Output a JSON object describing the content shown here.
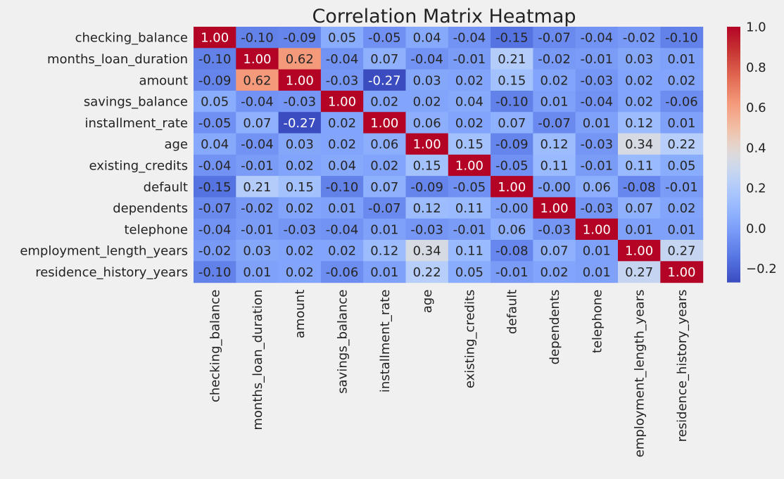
{
  "chart_data": {
    "type": "heatmap",
    "title": "Correlation Matrix Heatmap",
    "xlabel": "",
    "ylabel": "",
    "labels": [
      "checking_balance",
      "months_loan_duration",
      "amount",
      "savings_balance",
      "installment_rate",
      "age",
      "existing_credits",
      "default",
      "dependents",
      "telephone",
      "employment_length_years",
      "residence_history_years"
    ],
    "values": [
      [
        1.0,
        -0.1,
        -0.09,
        0.05,
        -0.05,
        0.04,
        -0.04,
        -0.15,
        -0.07,
        -0.04,
        -0.02,
        -0.1
      ],
      [
        -0.1,
        1.0,
        0.62,
        -0.04,
        0.07,
        -0.04,
        -0.01,
        0.21,
        -0.02,
        -0.01,
        0.03,
        0.01
      ],
      [
        -0.09,
        0.62,
        1.0,
        -0.03,
        -0.27,
        0.03,
        0.02,
        0.15,
        0.02,
        -0.03,
        0.02,
        0.02
      ],
      [
        0.05,
        -0.04,
        -0.03,
        1.0,
        0.02,
        0.02,
        0.04,
        -0.1,
        0.01,
        -0.04,
        0.02,
        -0.06
      ],
      [
        -0.05,
        0.07,
        -0.27,
        0.02,
        1.0,
        0.06,
        0.02,
        0.07,
        -0.07,
        0.01,
        0.12,
        0.01
      ],
      [
        0.04,
        -0.04,
        0.03,
        0.02,
        0.06,
        1.0,
        0.15,
        -0.09,
        0.12,
        -0.03,
        0.34,
        0.22
      ],
      [
        -0.04,
        -0.01,
        0.02,
        0.04,
        0.02,
        0.15,
        1.0,
        -0.05,
        0.11,
        -0.01,
        0.11,
        0.05
      ],
      [
        -0.15,
        0.21,
        0.15,
        -0.1,
        0.07,
        -0.09,
        -0.05,
        1.0,
        -0.0,
        0.06,
        -0.08,
        -0.01
      ],
      [
        -0.07,
        -0.02,
        0.02,
        0.01,
        -0.07,
        0.12,
        0.11,
        -0.0,
        1.0,
        -0.03,
        0.07,
        0.02
      ],
      [
        -0.04,
        -0.01,
        -0.03,
        -0.04,
        0.01,
        -0.03,
        -0.01,
        0.06,
        -0.03,
        1.0,
        0.01,
        0.01
      ],
      [
        -0.02,
        0.03,
        0.02,
        0.02,
        0.12,
        0.34,
        0.11,
        -0.08,
        0.07,
        0.01,
        1.0,
        0.27
      ],
      [
        -0.1,
        0.01,
        0.02,
        -0.06,
        0.01,
        0.22,
        0.05,
        -0.01,
        0.02,
        0.01,
        0.27,
        1.0
      ]
    ],
    "value_format": "2 decimals",
    "colormap": "coolwarm",
    "color_range": [
      -0.27,
      1.0
    ],
    "colorbar": {
      "ticks": [
        -0.2,
        0.0,
        0.2,
        0.4,
        0.6,
        0.8,
        1.0
      ],
      "tick_labels": [
        "−0.2",
        "0.0",
        "0.2",
        "0.4",
        "0.6",
        "0.8",
        "1.0"
      ],
      "position": "right"
    },
    "grid": false,
    "legend": "none"
  }
}
